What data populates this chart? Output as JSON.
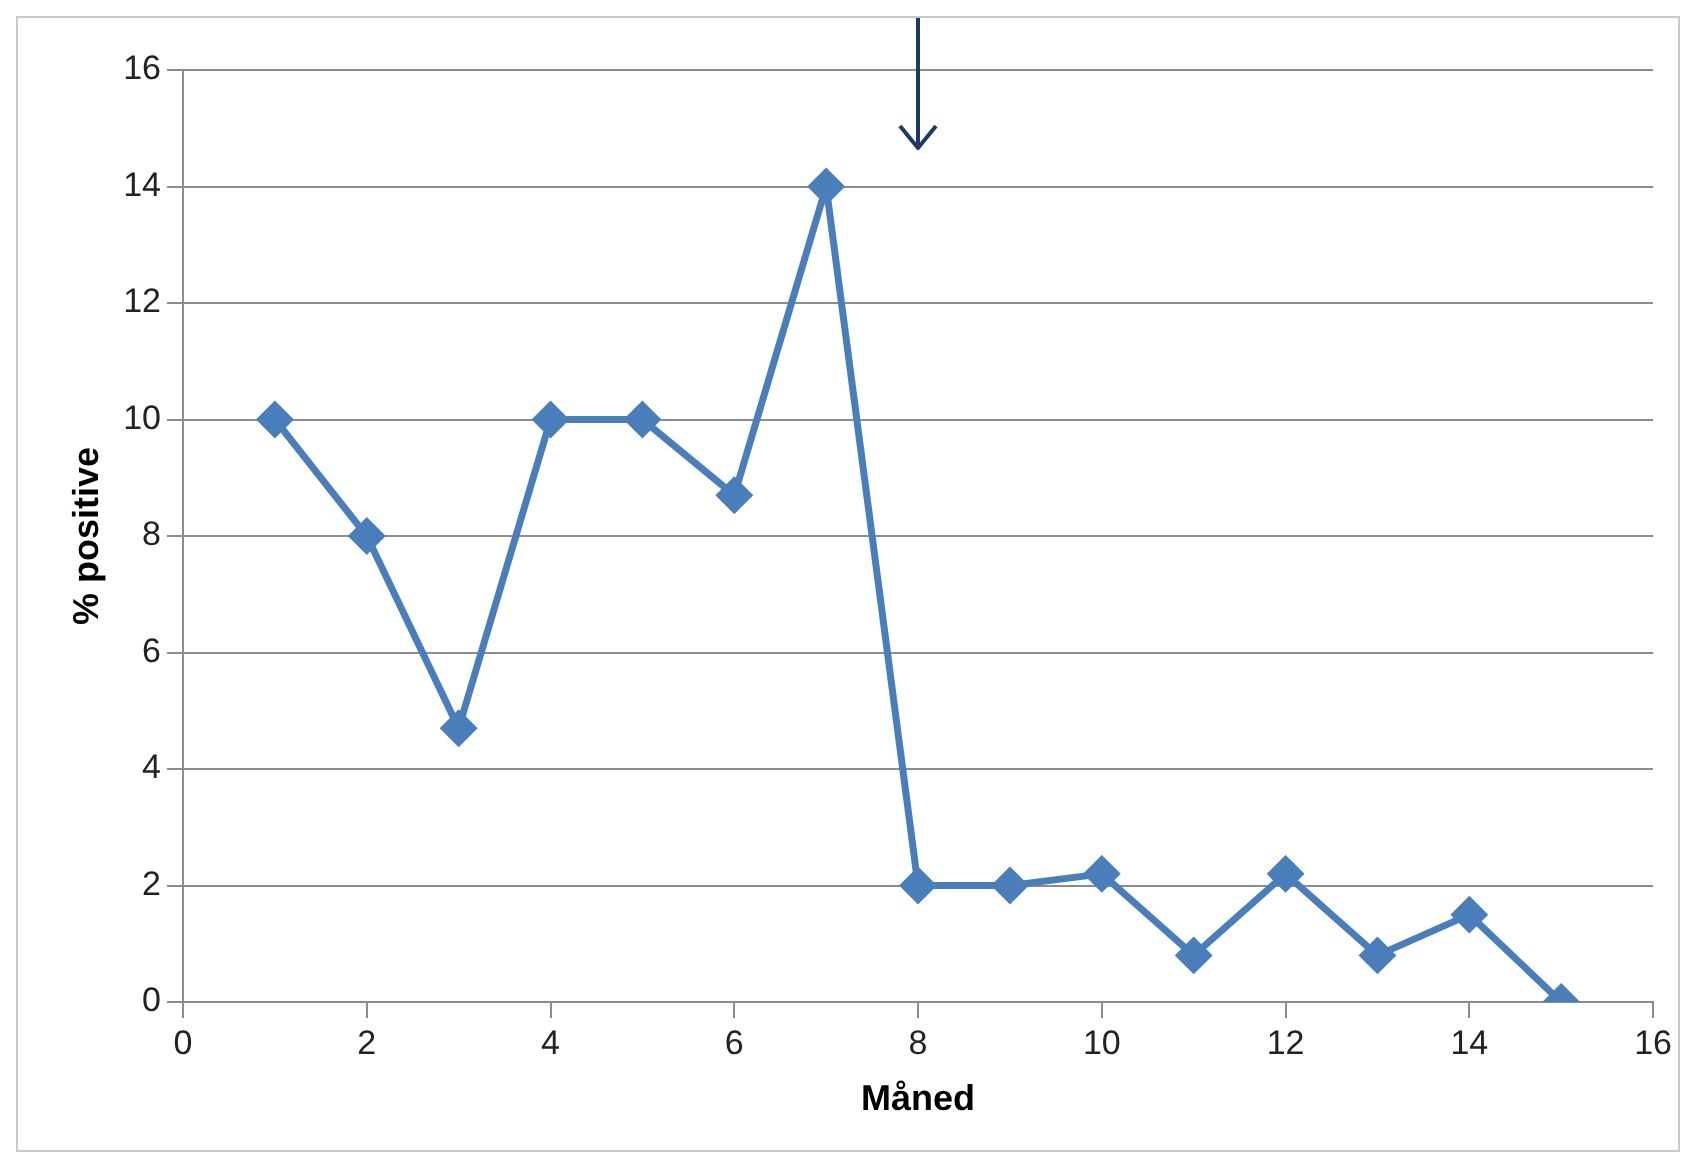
{
  "chart_data": {
    "type": "line",
    "xlabel": "Måned",
    "ylabel": "% positive",
    "x": [
      1,
      2,
      3,
      4,
      5,
      6,
      7,
      8,
      9,
      10,
      11,
      12,
      13,
      14,
      15
    ],
    "series": [
      {
        "color": "#4a7ebb",
        "values": [
          10,
          8,
          4.7,
          10,
          10,
          8.7,
          14,
          2,
          2,
          2.2,
          0.8,
          2.2,
          0.8,
          1.5,
          0
        ]
      }
    ],
    "xlim": [
      0,
      16
    ],
    "xticks": [
      0,
      2,
      4,
      6,
      8,
      10,
      12,
      14,
      16
    ],
    "ylim": [
      0,
      16
    ],
    "yticks": [
      0,
      2,
      4,
      6,
      8,
      10,
      12,
      14,
      16
    ],
    "grid": "y",
    "legend": false,
    "marker": "diamond",
    "line_style": "solid"
  }
}
